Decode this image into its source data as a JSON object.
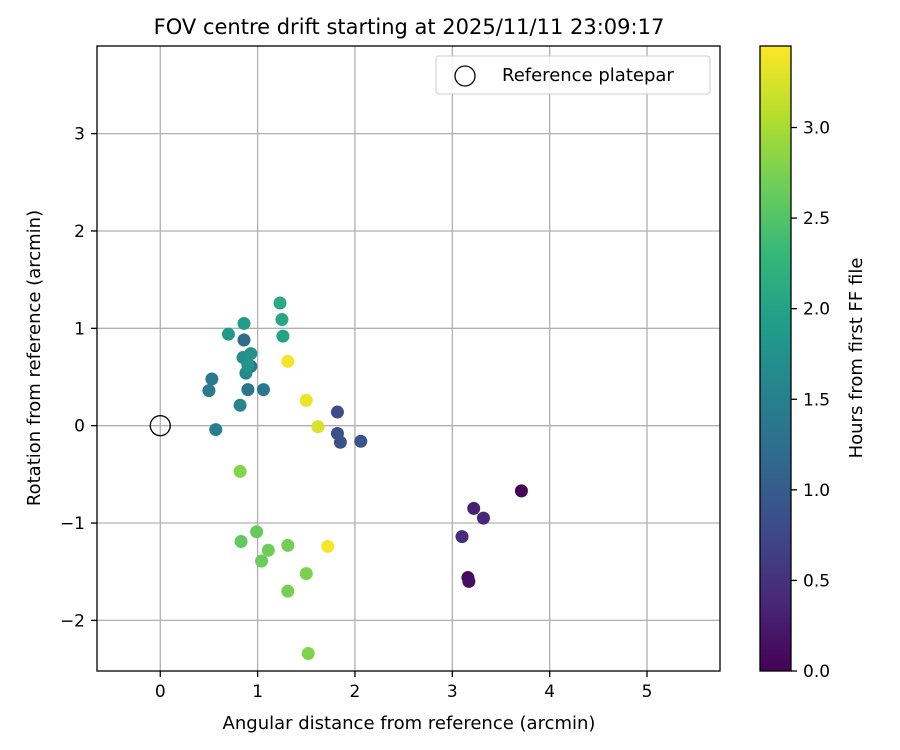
{
  "chart_data": {
    "type": "scatter",
    "title": "FOV centre drift starting at 2025/11/11 23:09:17",
    "xlabel": "Angular distance from reference (arcmin)",
    "ylabel": "Rotation from reference (arcmin)",
    "xlim": [
      -0.65,
      5.75
    ],
    "ylim": [
      -2.52,
      3.9
    ],
    "xticks": [
      0,
      1,
      2,
      3,
      4,
      5
    ],
    "xtick_labels": [
      "0",
      "1",
      "2",
      "3",
      "4",
      "5"
    ],
    "yticks": [
      -2,
      -1,
      0,
      1,
      2,
      3
    ],
    "ytick_labels": [
      "−2",
      "−1",
      "0",
      "1",
      "2",
      "3"
    ],
    "grid": true,
    "legend": {
      "position": "top-right",
      "entries": [
        "Reference platepar"
      ]
    },
    "reference_point": {
      "x": 0,
      "y": 0,
      "label": "Reference platepar"
    },
    "colorbar": {
      "label": "Hours from first FF file",
      "min": 0.0,
      "max": 3.45,
      "ticks": [
        0.0,
        0.5,
        1.0,
        1.5,
        2.0,
        2.5,
        3.0
      ],
      "tick_labels": [
        "0.0",
        "0.5",
        "1.0",
        "1.5",
        "2.0",
        "2.5",
        "3.0"
      ],
      "colormap": "viridis",
      "colormap_stops": [
        "#440154",
        "#482878",
        "#3e4989",
        "#31688e",
        "#26828e",
        "#1f9e89",
        "#35b779",
        "#6ece58",
        "#b5de2b",
        "#fde725"
      ]
    },
    "points": [
      {
        "x": 3.71,
        "y": -0.67,
        "c": 0.02
      },
      {
        "x": 3.16,
        "y": -1.56,
        "c": 0.1
      },
      {
        "x": 3.17,
        "y": -1.6,
        "c": 0.12
      },
      {
        "x": 3.22,
        "y": -0.85,
        "c": 0.3
      },
      {
        "x": 3.32,
        "y": -0.95,
        "c": 0.4
      },
      {
        "x": 3.1,
        "y": -1.14,
        "c": 0.45
      },
      {
        "x": 1.82,
        "y": 0.14,
        "c": 0.8
      },
      {
        "x": 1.82,
        "y": -0.08,
        "c": 0.85
      },
      {
        "x": 1.85,
        "y": -0.17,
        "c": 0.88
      },
      {
        "x": 2.06,
        "y": -0.16,
        "c": 0.92
      },
      {
        "x": 0.86,
        "y": 0.88,
        "c": 1.2
      },
      {
        "x": 0.93,
        "y": 0.61,
        "c": 1.3
      },
      {
        "x": 0.9,
        "y": 0.37,
        "c": 1.32
      },
      {
        "x": 1.06,
        "y": 0.37,
        "c": 1.38
      },
      {
        "x": 0.53,
        "y": 0.48,
        "c": 1.42
      },
      {
        "x": 0.5,
        "y": 0.36,
        "c": 1.45
      },
      {
        "x": 0.57,
        "y": -0.04,
        "c": 1.48
      },
      {
        "x": 0.82,
        "y": 0.21,
        "c": 1.6
      },
      {
        "x": 0.88,
        "y": 0.54,
        "c": 1.62
      },
      {
        "x": 0.85,
        "y": 0.7,
        "c": 1.7
      },
      {
        "x": 0.93,
        "y": 0.74,
        "c": 1.75
      },
      {
        "x": 0.9,
        "y": 0.62,
        "c": 1.8
      },
      {
        "x": 0.7,
        "y": 0.94,
        "c": 1.85
      },
      {
        "x": 0.86,
        "y": 1.05,
        "c": 1.9
      },
      {
        "x": 1.26,
        "y": 0.92,
        "c": 2.0
      },
      {
        "x": 1.25,
        "y": 1.09,
        "c": 2.05
      },
      {
        "x": 1.23,
        "y": 1.26,
        "c": 2.1
      },
      {
        "x": 0.83,
        "y": -1.19,
        "c": 2.6
      },
      {
        "x": 0.99,
        "y": -1.09,
        "c": 2.62
      },
      {
        "x": 1.04,
        "y": -1.39,
        "c": 2.65
      },
      {
        "x": 1.11,
        "y": -1.28,
        "c": 2.67
      },
      {
        "x": 1.31,
        "y": -1.23,
        "c": 2.7
      },
      {
        "x": 1.31,
        "y": -1.7,
        "c": 2.72
      },
      {
        "x": 1.5,
        "y": -1.52,
        "c": 2.75
      },
      {
        "x": 1.52,
        "y": -2.34,
        "c": 2.78
      },
      {
        "x": 0.82,
        "y": -0.47,
        "c": 2.8
      },
      {
        "x": 1.62,
        "y": -0.01,
        "c": 3.25
      },
      {
        "x": 1.5,
        "y": 0.26,
        "c": 3.35
      },
      {
        "x": 1.31,
        "y": 0.66,
        "c": 3.4
      },
      {
        "x": 1.72,
        "y": -1.24,
        "c": 3.42
      }
    ]
  }
}
